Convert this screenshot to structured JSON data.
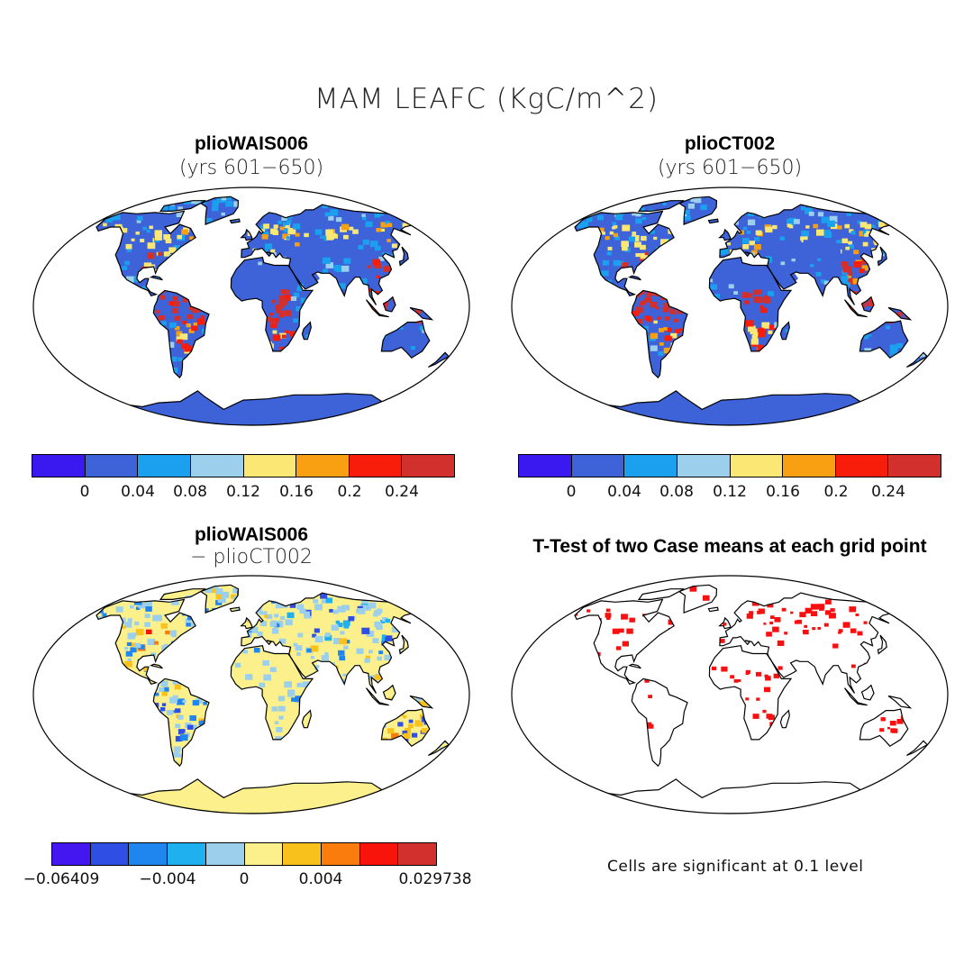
{
  "figure": {
    "title": "MAM LEAFC (KgC/m^2)"
  },
  "panels": [
    {
      "id": "p1",
      "title": "plioWAIS006",
      "subtitle": "(yrs 601−650)",
      "kind": "field"
    },
    {
      "id": "p2",
      "title": "plioCT002",
      "subtitle": "(yrs 601−650)",
      "kind": "field"
    },
    {
      "id": "p3",
      "title": "plioWAIS006",
      "subtitle": "− plioCT002",
      "kind": "difference"
    },
    {
      "id": "p4",
      "title": "T-Test of two Case means at each grid point",
      "subtitle": "",
      "kind": "significance"
    }
  ],
  "colorbars": {
    "top": {
      "colors": [
        "#3a18f0",
        "#3e62d8",
        "#1aa0ee",
        "#9ccfec",
        "#fbe874",
        "#f8a011",
        "#f81c0b",
        "#d2302d"
      ],
      "tick_labels": [
        "0",
        "0.04",
        "0.08",
        "0.12",
        "0.16",
        "0.2",
        "0.24"
      ]
    },
    "diff": {
      "colors": [
        "#4517f0",
        "#2f4ee4",
        "#1f86ef",
        "#1fb0f0",
        "#9ccfec",
        "#fbf08c",
        "#f8c11b",
        "#f97c0d",
        "#f8140a",
        "#d2302d"
      ],
      "tick_labels": [
        "−0.06409",
        "−0.004",
        "0",
        "0.004",
        "0.029738"
      ]
    }
  },
  "significance_note": "Cells are significant at 0.1 level",
  "colors": {
    "ocean": "#ffffff",
    "coast": "#000000",
    "significant": "#f81010"
  }
}
